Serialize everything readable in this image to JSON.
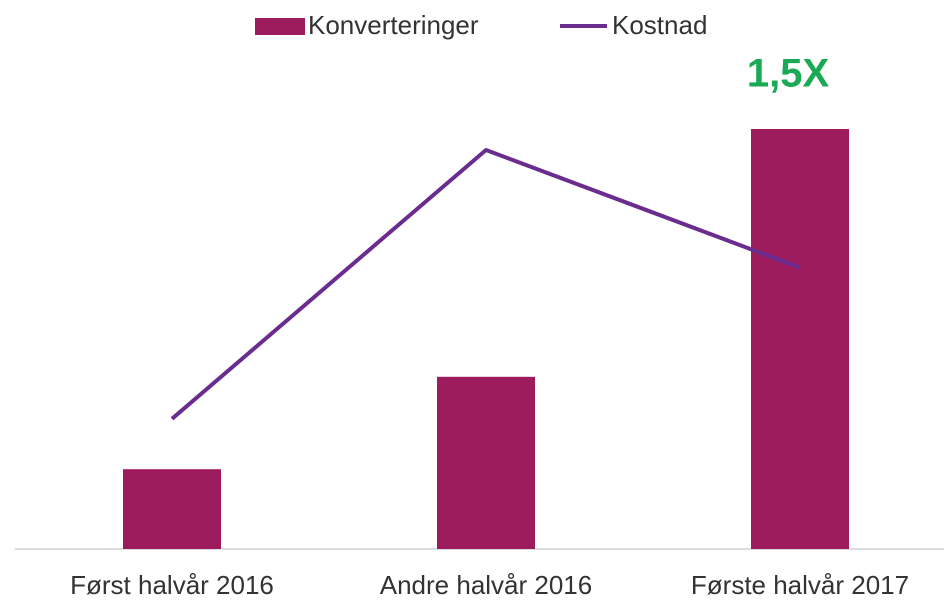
{
  "chart_data": {
    "type": "bar",
    "annotation": "1,5X",
    "categories": [
      "Først halvår 2016",
      "Andre halvår 2016",
      "Første halvår 2017"
    ],
    "series": [
      {
        "name": "Konverteringer",
        "color": "#9c1c5e",
        "type": "bar",
        "values": [
          19,
          41,
          100
        ]
      },
      {
        "name": "Kostnad",
        "color": "#6a2c8e",
        "type": "line",
        "values": [
          31,
          95,
          67
        ]
      }
    ],
    "ylim": [
      0,
      100
    ],
    "legend": "top"
  }
}
